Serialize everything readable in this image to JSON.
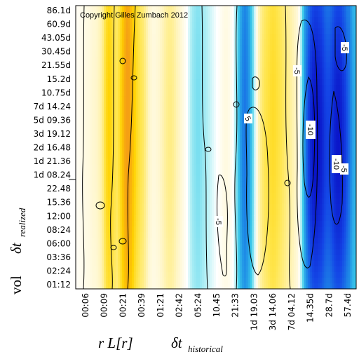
{
  "chart_data": {
    "type": "heatmap",
    "copyright": "Copyright Gilles Zumbach 2012",
    "x_ticks": [
      "00:06",
      "00:09",
      "00:21",
      "00:39",
      "01:21",
      "02:42",
      "05:24",
      "10.45",
      "21:33",
      "1d 19.03",
      "3d 14.06",
      "7d 04.12",
      "14.35d",
      "28.7d",
      "57.4d"
    ],
    "y_ticks": [
      "86.1d",
      "60.9d",
      "43.05d",
      "30.45d",
      "21.55d",
      "15.2d",
      "10.75d",
      "7d 14.24",
      "5d 09.36",
      "3d 19.12",
      "2d 16.48",
      "1d 21.36",
      "1d 08.24",
      "22.48",
      "15.36",
      "12:00",
      "08:24",
      "06:00",
      "03:36",
      "02:24",
      "01:12"
    ],
    "xlabel_left": "r L[r]",
    "xlabel_right": "δt",
    "xlabel_sub": "historical",
    "ylabel_prefix": "vol",
    "ylabel_main": "δt",
    "ylabel_sub": "realized",
    "contour_labels": [
      "-5",
      "-5",
      "-10",
      "-10",
      "-5",
      "5",
      "-5"
    ],
    "column_profile": [
      0.4,
      0.5,
      0.6,
      0.7,
      0.9,
      1.0,
      1.1,
      1.3,
      1.5,
      1.6,
      1.8,
      2.2,
      2.8,
      4.0,
      6.0,
      8.0,
      9.0,
      8.5,
      7.0,
      6.0,
      5.5,
      6.5,
      8.5,
      11.0,
      13.5,
      15.5,
      15.0,
      13.0,
      11.0,
      9.0,
      7.5,
      6.5,
      5.5,
      5.0,
      4.0,
      3.0,
      2.0,
      1.5,
      1.2,
      1.2,
      1.4,
      1.6,
      2.0,
      2.4,
      3.0,
      3.5,
      3.8,
      3.8,
      3.5,
      3.0,
      2.4,
      2.0,
      1.5,
      1.0,
      0.5,
      0.0,
      -0.5,
      -1.0,
      -1.4,
      -1.6,
      -1.8,
      -1.8,
      -1.6,
      -1.4,
      -1.2,
      -1.0,
      -0.8,
      -0.6,
      -0.4,
      -0.2,
      0.0,
      0.2,
      0.5,
      0.8,
      1.0,
      1.0,
      0.8,
      0.5,
      0.0,
      -0.8,
      -2.0,
      -3.5,
      -5.0,
      -6.0,
      -6.5,
      -6.0,
      -5.0,
      -3.5,
      -2.0,
      -0.5,
      1.0,
      2.5,
      3.8,
      4.8,
      5.5,
      6.0,
      6.5,
      7.0,
      7.2,
      7.0,
      6.5,
      6.0,
      5.5,
      5.0,
      4.5,
      4.0,
      3.5,
      3.0,
      2.5,
      2.0,
      1.5,
      0.5,
      -1.0,
      -3.0,
      -5.5,
      -8.0,
      -10.0,
      -11.5,
      -12.5,
      -13.0,
      -13.0,
      -12.5,
      -12.0,
      -11.0,
      -10.0,
      -9.5,
      -9.5,
      -10.0,
      -11.0,
      -12.0,
      -12.5,
      -12.5,
      -12.0,
      -11.0,
      -10.0,
      -8.5,
      -7.0,
      -5.5,
      -4.5,
      -4.0
    ],
    "colorscale": [
      {
        "v": -14,
        "color": "#0a14c8"
      },
      {
        "v": -10,
        "color": "#1446e6"
      },
      {
        "v": -6,
        "color": "#1e8ce6"
      },
      {
        "v": -3,
        "color": "#3ccdea"
      },
      {
        "v": -1,
        "color": "#b4f0f5"
      },
      {
        "v": 0,
        "color": "#ffffff"
      },
      {
        "v": 2,
        "color": "#fff6c8"
      },
      {
        "v": 6,
        "color": "#ffe650"
      },
      {
        "v": 10,
        "color": "#ffd200"
      },
      {
        "v": 16,
        "color": "#f5a014"
      }
    ],
    "grid": false
  }
}
